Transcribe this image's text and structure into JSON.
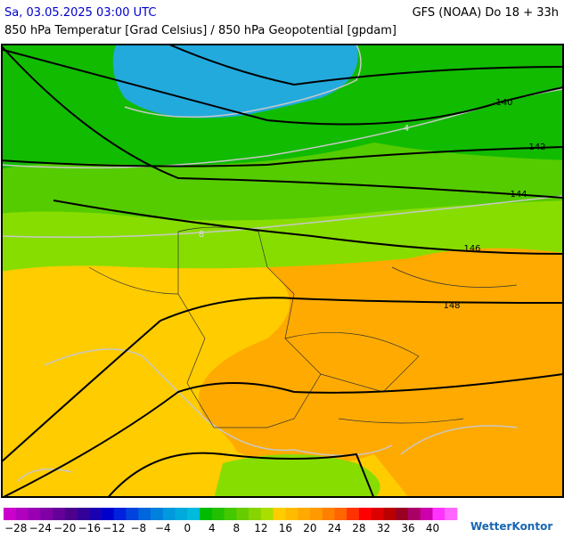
{
  "header": {
    "date": "Sa, 03.05.2025 03:00 UTC",
    "model": "GFS (NOAA) Do 18 + 33h",
    "subtitle": "850 hPa Temperatur [Grad Celsius] / 850 hPa Geopotential [gpdam]"
  },
  "map": {
    "geopotential_labels": [
      140,
      142,
      144,
      146,
      148
    ],
    "temperature_labels": [
      4,
      8
    ]
  },
  "colorbar": {
    "labels": [
      "−28",
      "−24",
      "−20",
      "−16",
      "−12",
      "−8",
      "−4",
      "0",
      "4",
      "8",
      "12",
      "16",
      "20",
      "24",
      "28",
      "32",
      "36",
      "40"
    ],
    "colors": [
      "#cc00cc",
      "#b000c0",
      "#9900b3",
      "#8000a6",
      "#660099",
      "#4d008c",
      "#330099",
      "#1a00b3",
      "#0000cc",
      "#0022dd",
      "#0044dd",
      "#0066dd",
      "#0080dd",
      "#0099dd",
      "#00aadd",
      "#00bbdd",
      "#00bb00",
      "#22c000",
      "#44c800",
      "#66cc00",
      "#88d400",
      "#aadd00",
      "#ffcc00",
      "#ffbb00",
      "#ffaa00",
      "#ff9900",
      "#ff8000",
      "#ff6600",
      "#ff3300",
      "#ff0000",
      "#dd0000",
      "#bb0000",
      "#990022",
      "#aa0066",
      "#cc00aa",
      "#ff33ff",
      "#ff66ff"
    ],
    "logo": "WetterKontor"
  }
}
